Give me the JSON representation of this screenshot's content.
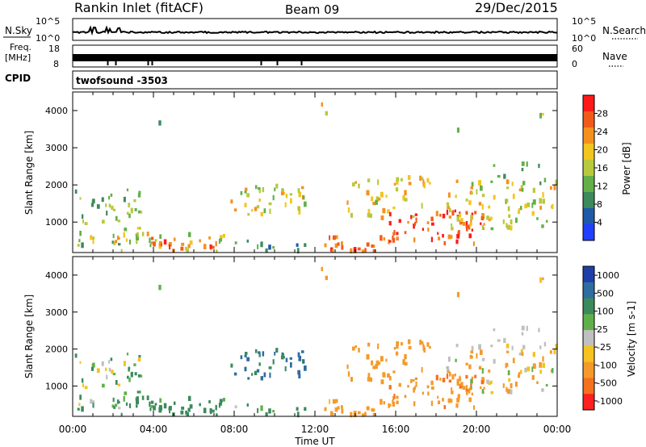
{
  "header": {
    "station": "Rankin Inlet (fitACF)",
    "beam": "Beam 09",
    "date": "29/Dec/2015"
  },
  "aux_panels": {
    "nsky": {
      "label": "N.Sky",
      "ticks": [
        "10^5",
        "10^0"
      ]
    },
    "nsearch": {
      "label": "N.Search",
      "ticks": [
        "10^5",
        "10^0"
      ]
    },
    "freq": {
      "label_line1": "Freq.",
      "label_line2": "[MHz]",
      "ticks": [
        "18",
        "8"
      ]
    },
    "nave": {
      "label": "Nave",
      "ticks": [
        "60",
        "0"
      ]
    },
    "cpid": {
      "label": "CPID",
      "value": "twofsound -3503"
    }
  },
  "colors": {
    "power_scale": [
      "#2040ff",
      "#1f5aa8",
      "#3d8a5c",
      "#63b04a",
      "#b8c93c",
      "#f2c51f",
      "#f5901f",
      "#f25a1a",
      "#ff1a1a"
    ],
    "velocity_scale": [
      "#1f3fa8",
      "#2f6ca0",
      "#3a8a5c",
      "#5fb04a",
      "#c0c0c0",
      "#f5c21f",
      "#f59a2a",
      "#f5701f",
      "#ff2020"
    ]
  },
  "chart_data": [
    {
      "type": "heatmap",
      "title": "Power",
      "xlabel": "Time UT",
      "ylabel": "Slant Range [km]",
      "x_ticks": [
        "00:00",
        "04:00",
        "08:00",
        "12:00",
        "16:00",
        "20:00",
        "00:00"
      ],
      "y_ticks": [
        1000,
        2000,
        3000,
        4000
      ],
      "ylim": [
        180,
        4500
      ],
      "xlim_hours": [
        0,
        24
      ],
      "colorbar": {
        "label": "Power [dB]",
        "ticks": [
          4,
          8,
          12,
          16,
          20,
          24,
          28
        ],
        "range": [
          0,
          32
        ]
      }
    },
    {
      "type": "heatmap",
      "title": "Velocity",
      "xlabel": "Time UT",
      "ylabel": "Slant Range [km]",
      "x_ticks": [
        "00:00",
        "04:00",
        "08:00",
        "12:00",
        "16:00",
        "20:00",
        "00:00"
      ],
      "y_ticks": [
        1000,
        2000,
        3000,
        4000
      ],
      "ylim": [
        180,
        4500
      ],
      "xlim_hours": [
        0,
        24
      ],
      "colorbar": {
        "label": "Velocity [m s-1]",
        "ticks": [
          1000,
          500,
          100,
          25,
          -25,
          -100,
          -500,
          -1000
        ]
      }
    }
  ]
}
